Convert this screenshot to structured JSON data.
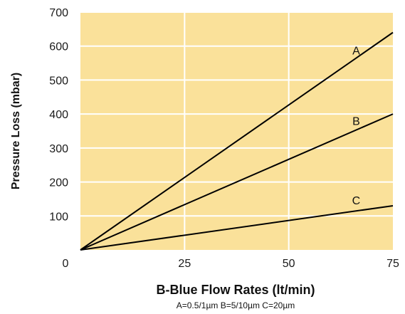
{
  "chart_data": {
    "type": "line",
    "x_ticks": [
      0,
      25,
      50,
      75
    ],
    "y_ticks": [
      100,
      200,
      300,
      400,
      500,
      600,
      700
    ],
    "y_origin_label": "0",
    "xlim": [
      0,
      75
    ],
    "ylim": [
      0,
      700
    ],
    "xlabel": "B-Blue Flow Rates (lt/min)",
    "ylabel": "Pressure Loss (mbar)",
    "footnote": "A=0.5/1µm  B=5/10µm  C=20µm",
    "grid": true,
    "series": [
      {
        "name": "A",
        "x": [
          0,
          75
        ],
        "y": [
          0,
          640
        ]
      },
      {
        "name": "B",
        "x": [
          0,
          75
        ],
        "y": [
          0,
          400
        ]
      },
      {
        "name": "C",
        "x": [
          0,
          75
        ],
        "y": [
          0,
          130
        ]
      }
    ],
    "colors": {
      "plot_background": "#FAE19A",
      "grid": "#FFFFFF",
      "line": "#000000"
    }
  }
}
